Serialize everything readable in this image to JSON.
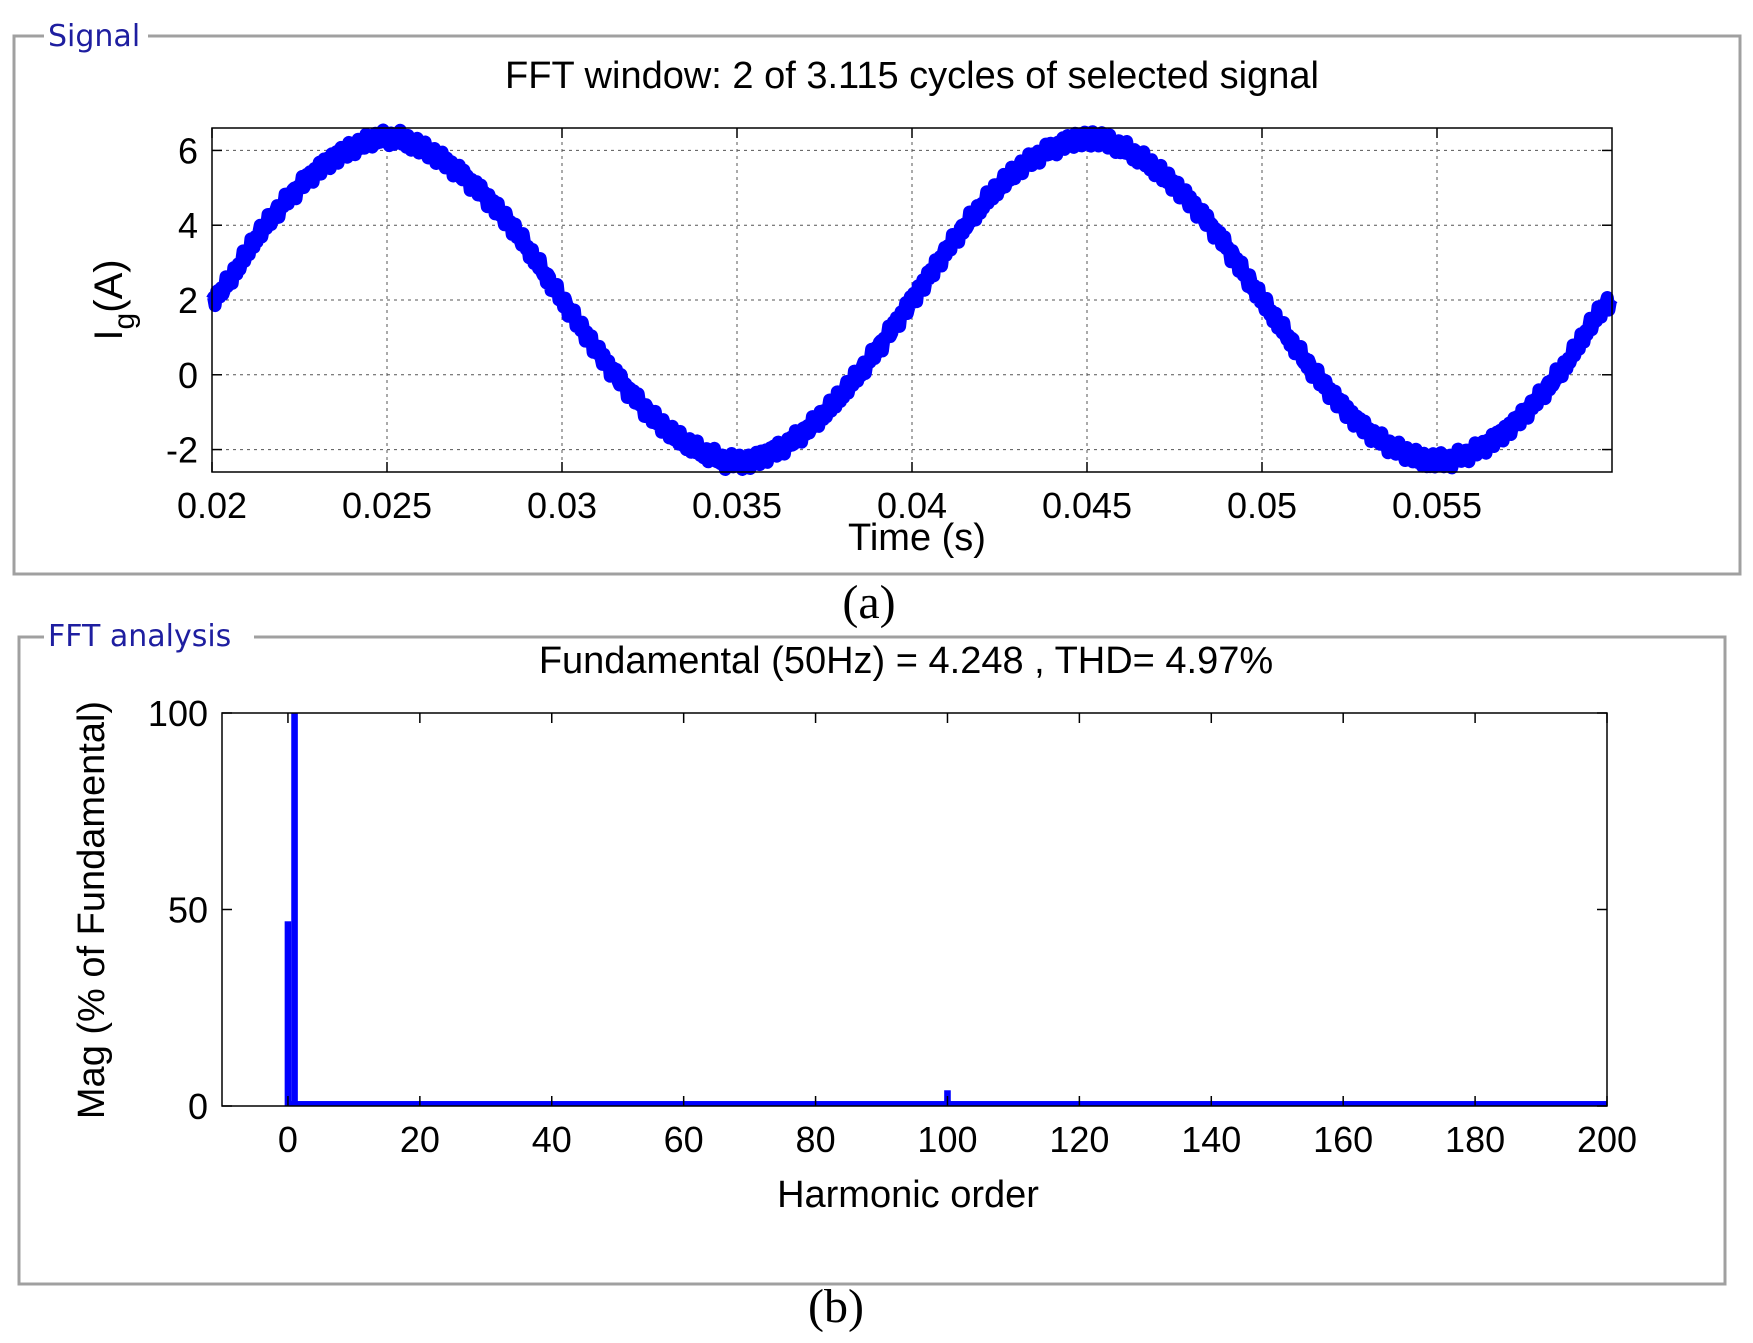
{
  "panels": {
    "signal": {
      "label": "Signal",
      "caption": "(a)"
    },
    "fft": {
      "label": "FFT analysis",
      "caption": "(b)"
    }
  },
  "colors": {
    "series": "#0000ff",
    "frame": "#a0a0a0",
    "panel_label": "#1e1ea0"
  },
  "chart_data": [
    {
      "type": "line",
      "title": "FFT window: 2 of 3.115 cycles of selected signal",
      "xlabel": "Time (s)",
      "ylabel_main": "I",
      "ylabel_sub": "g",
      "ylabel_tail": "(A)",
      "xlim": [
        0.02,
        0.06
      ],
      "ylim": [
        -2.6,
        6.6
      ],
      "xticks": [
        0.02,
        0.025,
        0.03,
        0.035,
        0.04,
        0.045,
        0.05,
        0.055
      ],
      "xtick_labels": [
        "0.02",
        "0.025",
        "0.03",
        "0.035",
        "0.04",
        "0.045",
        "0.05",
        "0.055"
      ],
      "yticks": [
        6,
        4,
        2,
        0,
        -2
      ],
      "ytick_labels": [
        "6",
        "4",
        "2",
        "0",
        "-2"
      ],
      "grid": true,
      "series": [
        {
          "x": [
            0.02,
            0.0215,
            0.023,
            0.0245,
            0.025,
            0.0255,
            0.027,
            0.0285,
            0.03,
            0.0315,
            0.033,
            0.0345,
            0.035,
            0.0355,
            0.037,
            0.0385,
            0.04,
            0.0415,
            0.043,
            0.0445,
            0.045,
            0.0455,
            0.047,
            0.0485,
            0.05,
            0.0515,
            0.053,
            0.0545,
            0.055,
            0.0555,
            0.057,
            0.0585,
            0.06
          ],
          "y": [
            2.0,
            3.95,
            5.47,
            6.24,
            6.3,
            6.24,
            5.47,
            4.04,
            2.0,
            0.05,
            -1.47,
            -2.24,
            -2.3,
            -2.24,
            -1.47,
            0.04,
            2.0,
            3.95,
            5.47,
            6.24,
            6.3,
            6.24,
            5.47,
            4.04,
            2.0,
            0.05,
            -1.47,
            -2.24,
            -2.3,
            -2.24,
            -1.47,
            0.04,
            2.0
          ]
        }
      ]
    },
    {
      "type": "bar",
      "title": "Fundamental (50Hz) = 4.248 , THD= 4.97%",
      "xlabel": "Harmonic order",
      "ylabel": "Mag (% of Fundamental)",
      "xlim": [
        -10,
        200
      ],
      "ylim": [
        0,
        100
      ],
      "xticks": [
        0,
        20,
        40,
        60,
        80,
        100,
        120,
        140,
        160,
        180,
        200
      ],
      "xtick_labels": [
        "0",
        "20",
        "40",
        "60",
        "80",
        "100",
        "120",
        "140",
        "160",
        "180",
        "200"
      ],
      "yticks": [
        100,
        50,
        0
      ],
      "ytick_labels": [
        "100",
        "50",
        "0"
      ],
      "grid": false,
      "bars": [
        {
          "harmonic": 0,
          "value": 47
        },
        {
          "harmonic": 1,
          "value": 100
        },
        {
          "harmonic": 100,
          "value": 4
        }
      ],
      "baseline_value": 0.5
    }
  ]
}
